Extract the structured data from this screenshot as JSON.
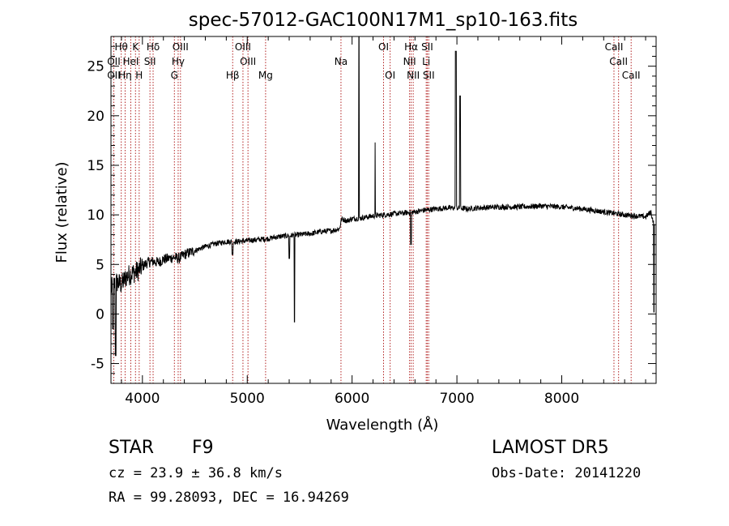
{
  "chart_data": {
    "type": "line",
    "title": "spec-57012-GAC100N17M1_sp10-163.fits",
    "xlabel": "Wavelength (Å)",
    "ylabel": "Flux (relative)",
    "xlim": [
      3700,
      8900
    ],
    "ylim": [
      -7,
      28
    ],
    "xticks": [
      4000,
      5000,
      6000,
      7000,
      8000
    ],
    "yticks": [
      -5,
      0,
      5,
      10,
      15,
      20,
      25
    ],
    "grid": false,
    "line_color": "#000000",
    "marker_color": "#b22222",
    "lines": [
      {
        "label": "Hθ",
        "x": 3798,
        "row": 0
      },
      {
        "label": "OII",
        "x": 3727,
        "row": 1
      },
      {
        "label": "OII",
        "x": 3727,
        "row": 2
      },
      {
        "label": "Hη",
        "x": 3835,
        "row": 2
      },
      {
        "label": "HeI",
        "x": 3889,
        "row": 1
      },
      {
        "label": "K",
        "x": 3934,
        "row": 0
      },
      {
        "label": "H",
        "x": 3969,
        "row": 2
      },
      {
        "label": "Hδ",
        "x": 4102,
        "row": 0
      },
      {
        "label": "SII",
        "x": 4072,
        "row": 1
      },
      {
        "label": "OIII",
        "x": 4363,
        "row": 0
      },
      {
        "label": "Hγ",
        "x": 4341,
        "row": 1
      },
      {
        "label": "G",
        "x": 4305,
        "row": 2
      },
      {
        "label": "OIII",
        "x": 4959,
        "row": 0
      },
      {
        "label": "OIII",
        "x": 5007,
        "row": 1
      },
      {
        "label": "Hβ",
        "x": 4861,
        "row": 2
      },
      {
        "label": "Mg",
        "x": 5175,
        "row": 2
      },
      {
        "label": "Na",
        "x": 5894,
        "row": 1
      },
      {
        "label": "OI",
        "x": 6300,
        "row": 0
      },
      {
        "label": "OI",
        "x": 6363,
        "row": 2
      },
      {
        "label": "Hα",
        "x": 6563,
        "row": 0
      },
      {
        "label": "NII",
        "x": 6548,
        "row": 1
      },
      {
        "label": "NII",
        "x": 6583,
        "row": 2
      },
      {
        "label": "SII",
        "x": 6717,
        "row": 0
      },
      {
        "label": "Li",
        "x": 6707,
        "row": 1
      },
      {
        "label": "SII",
        "x": 6731,
        "row": 2
      },
      {
        "label": "CaII",
        "x": 8498,
        "row": 0
      },
      {
        "label": "CaII",
        "x": 8542,
        "row": 1
      },
      {
        "label": "CaII",
        "x": 8662,
        "row": 2
      }
    ],
    "anchors": [
      [
        3700,
        2.5
      ],
      [
        3750,
        3.2
      ],
      [
        3800,
        3.0
      ],
      [
        3850,
        3.8
      ],
      [
        3900,
        4.1
      ],
      [
        3950,
        4.3
      ],
      [
        4000,
        4.8
      ],
      [
        4050,
        5.2
      ],
      [
        4100,
        5.3
      ],
      [
        4150,
        5.2
      ],
      [
        4200,
        5.5
      ],
      [
        4250,
        5.6
      ],
      [
        4300,
        5.7
      ],
      [
        4350,
        5.6
      ],
      [
        4400,
        6.0
      ],
      [
        4450,
        6.2
      ],
      [
        4500,
        6.4
      ],
      [
        4600,
        6.8
      ],
      [
        4700,
        7.1
      ],
      [
        4800,
        7.3
      ],
      [
        4900,
        7.3
      ],
      [
        5000,
        7.4
      ],
      [
        5100,
        7.5
      ],
      [
        5200,
        7.6
      ],
      [
        5300,
        7.8
      ],
      [
        5400,
        7.9
      ],
      [
        5500,
        8.0
      ],
      [
        5600,
        8.1
      ],
      [
        5700,
        8.3
      ],
      [
        5800,
        8.4
      ],
      [
        5880,
        8.6
      ],
      [
        5900,
        9.6
      ],
      [
        5950,
        9.4
      ],
      [
        6000,
        9.6
      ],
      [
        6100,
        9.7
      ],
      [
        6200,
        9.9
      ],
      [
        6300,
        10.0
      ],
      [
        6400,
        10.1
      ],
      [
        6500,
        10.2
      ],
      [
        6600,
        10.3
      ],
      [
        6700,
        10.5
      ],
      [
        6800,
        10.6
      ],
      [
        6900,
        10.7
      ],
      [
        7000,
        10.7
      ],
      [
        7100,
        10.6
      ],
      [
        7200,
        10.7
      ],
      [
        7400,
        10.8
      ],
      [
        7600,
        10.8
      ],
      [
        7800,
        10.9
      ],
      [
        8000,
        10.8
      ],
      [
        8200,
        10.6
      ],
      [
        8400,
        10.3
      ],
      [
        8600,
        10.0
      ],
      [
        8800,
        9.8
      ],
      [
        8850,
        10.3
      ],
      [
        8880,
        9.0
      ]
    ],
    "spikes": [
      {
        "x": 5450,
        "y": -0.8,
        "w": 6
      },
      {
        "x": 5400,
        "y": 5.6,
        "w": 8
      },
      {
        "x": 6065,
        "y": 28.5,
        "w": 5
      },
      {
        "x": 6220,
        "y": 17.3,
        "w": 5
      },
      {
        "x": 6563,
        "y": 7.0,
        "w": 8
      },
      {
        "x": 6990,
        "y": 26.5,
        "w": 12
      },
      {
        "x": 7030,
        "y": 22.0,
        "w": 6
      },
      {
        "x": 4860,
        "y": 6.0,
        "w": 10
      },
      {
        "x": 3720,
        "y": -1.5,
        "w": 10
      },
      {
        "x": 3745,
        "y": -4.2,
        "w": 6
      },
      {
        "x": 8880,
        "y": 0.2,
        "w": 6
      }
    ]
  },
  "info": {
    "object_class": "STAR",
    "subclass": "F9",
    "survey": "LAMOST DR5",
    "velocity": "cz = 23.9 ± 36.8 km/s",
    "obs_date": "Obs-Date: 20141220",
    "coords": "RA =  99.28093, DEC =  16.94269"
  }
}
